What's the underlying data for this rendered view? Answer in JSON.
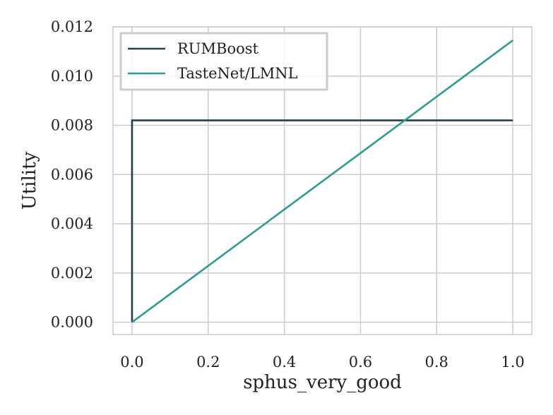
{
  "chart_data": {
    "type": "line",
    "xlabel": "sphus_very_good",
    "ylabel": "Utility",
    "xlim": [
      -0.05,
      1.05
    ],
    "ylim": [
      -0.0005,
      0.012
    ],
    "xticks": [
      0.0,
      0.2,
      0.4,
      0.6,
      0.8,
      1.0
    ],
    "xtick_labels": [
      "0.0",
      "0.2",
      "0.4",
      "0.6",
      "0.8",
      "1.0"
    ],
    "yticks": [
      0.0,
      0.002,
      0.004,
      0.006,
      0.008,
      0.01,
      0.012
    ],
    "ytick_labels": [
      "0.000",
      "0.002",
      "0.004",
      "0.006",
      "0.008",
      "0.010",
      "0.012"
    ],
    "grid": true,
    "legend_position": "top-left",
    "series": [
      {
        "name": "RUMBoost",
        "color": "#243f4f",
        "x": [
          0.0,
          0.0,
          1.0
        ],
        "y": [
          0.0,
          0.0082,
          0.0082
        ]
      },
      {
        "name": "TasteNet/LMNL",
        "color": "#2a9d8f",
        "x": [
          0.0,
          1.0
        ],
        "y": [
          0.0,
          0.01145
        ]
      }
    ]
  }
}
